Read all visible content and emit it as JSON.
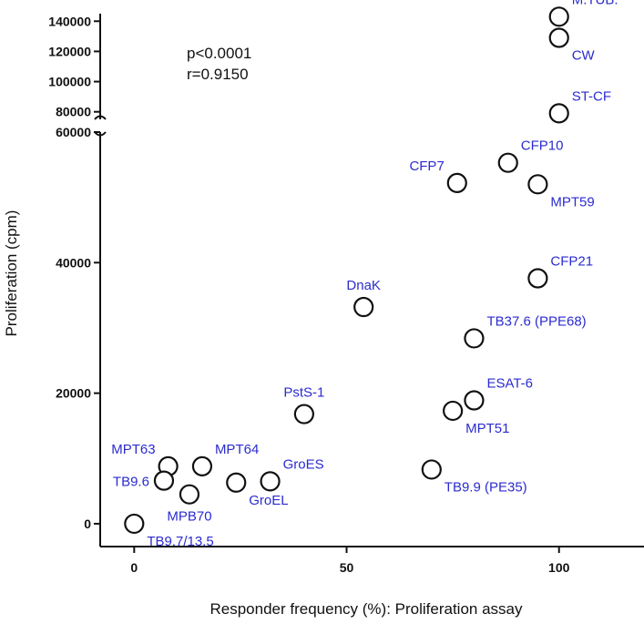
{
  "chart_data": {
    "type": "scatter",
    "title": "",
    "xlabel": "Responder frequency (%): Proliferation assay",
    "ylabel": "Proliferation (cpm)",
    "xlim": [
      -8,
      120
    ],
    "x_ticks": [
      0,
      50,
      100
    ],
    "y_axis_broken": true,
    "y_lower_range": [
      -3500,
      60000
    ],
    "y_upper_range": [
      75000,
      145000
    ],
    "y_lower_ticks": [
      0,
      20000,
      40000,
      60000
    ],
    "y_upper_ticks": [
      80000,
      100000,
      120000,
      140000
    ],
    "statistics": {
      "p": "p<0.0001",
      "r": "r=0.9150"
    },
    "colors": {
      "marker": "#111111",
      "label": "#2b2bd0",
      "axis": "#111111"
    },
    "points": [
      {
        "label": "M.TUB.",
        "x": 100,
        "y": 143000,
        "label_pos": "upper-right"
      },
      {
        "label": "CW",
        "x": 100,
        "y": 129000,
        "label_pos": "lower-right"
      },
      {
        "label": "ST-CF",
        "x": 100,
        "y": 79000,
        "label_pos": "upper-right"
      },
      {
        "label": "CFP7",
        "x": 76,
        "y": 52200,
        "label_pos": "upper-left"
      },
      {
        "label": "CFP10",
        "x": 88,
        "y": 55300,
        "label_pos": "upper-right"
      },
      {
        "label": "MPT59",
        "x": 95,
        "y": 52000,
        "label_pos": "lower-right"
      },
      {
        "label": "CFP21",
        "x": 95,
        "y": 37600,
        "label_pos": "upper-right"
      },
      {
        "label": "DnaK",
        "x": 54,
        "y": 33200,
        "label_pos": "upper"
      },
      {
        "label": "TB37.6 (PPE68)",
        "x": 80,
        "y": 28400,
        "label_pos": "upper-right"
      },
      {
        "label": "ESAT-6",
        "x": 80,
        "y": 18900,
        "label_pos": "upper-right"
      },
      {
        "label": "MPT51",
        "x": 75,
        "y": 17300,
        "label_pos": "lower-right"
      },
      {
        "label": "PstS-1",
        "x": 40,
        "y": 16800,
        "label_pos": "upper"
      },
      {
        "label": "TB9.9 (PE35)",
        "x": 70,
        "y": 8300,
        "label_pos": "lower-right"
      },
      {
        "label": "MPT63",
        "x": 8,
        "y": 8800,
        "label_pos": "upper-left"
      },
      {
        "label": "MPT64",
        "x": 16,
        "y": 8800,
        "label_pos": "upper-right"
      },
      {
        "label": "GroES",
        "x": 32,
        "y": 6500,
        "label_pos": "upper-right"
      },
      {
        "label": "GroEL",
        "x": 24,
        "y": 6300,
        "label_pos": "lower-right"
      },
      {
        "label": "TB9.6",
        "x": 7,
        "y": 6600,
        "label_pos": "left"
      },
      {
        "label": "MPB70",
        "x": 13,
        "y": 4500,
        "label_pos": "lower"
      },
      {
        "label": "TB9.7/13.5",
        "x": 0,
        "y": 0,
        "label_pos": "lower-right"
      }
    ]
  }
}
